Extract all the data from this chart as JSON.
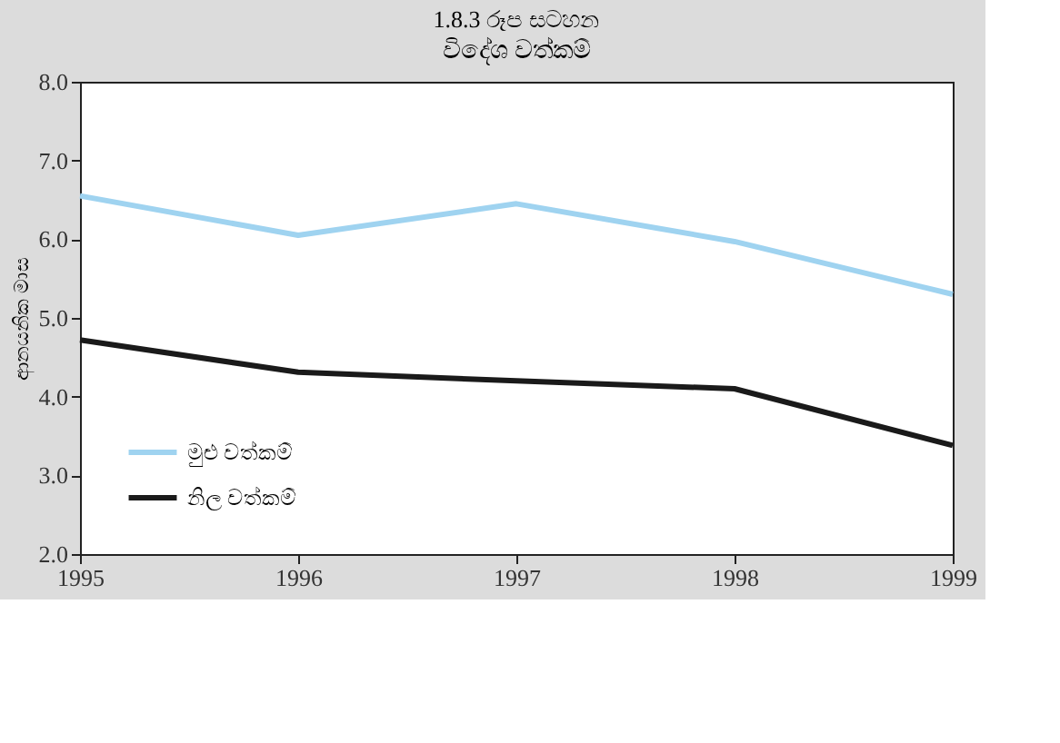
{
  "chart_data": {
    "type": "line",
    "title": "1.8.3 රූප සටහන",
    "subtitle": "විදේශ වත්කම්",
    "ylabel": "ආනයනික මාස",
    "x": [
      1995,
      1996,
      1997,
      1998,
      1999
    ],
    "series": [
      {
        "name": "මුළු වත්කම්",
        "color": "#9fd3f0",
        "values": [
          6.55,
          6.05,
          6.45,
          5.97,
          5.3
        ]
      },
      {
        "name": "නිල වත්කම්",
        "color": "#1a1a1a",
        "values": [
          4.72,
          4.31,
          4.2,
          4.1,
          3.38
        ]
      }
    ],
    "xlim": [
      1995,
      1999
    ],
    "xticks": [
      1995,
      1996,
      1997,
      1998,
      1999
    ],
    "ylim": [
      2.0,
      8.0
    ],
    "yticks": [
      {
        "value": 2,
        "label": "2.0"
      },
      {
        "value": 3,
        "label": "3.0"
      },
      {
        "value": 4,
        "label": "4.0"
      },
      {
        "value": 5,
        "label": "5.0"
      },
      {
        "value": 6,
        "label": "6.0"
      },
      {
        "value": 7,
        "label": "7.0"
      },
      {
        "value": 8,
        "label": "8.0"
      }
    ],
    "grid": false,
    "legend": "bottom left",
    "marker": "none",
    "line_style": "solid"
  }
}
